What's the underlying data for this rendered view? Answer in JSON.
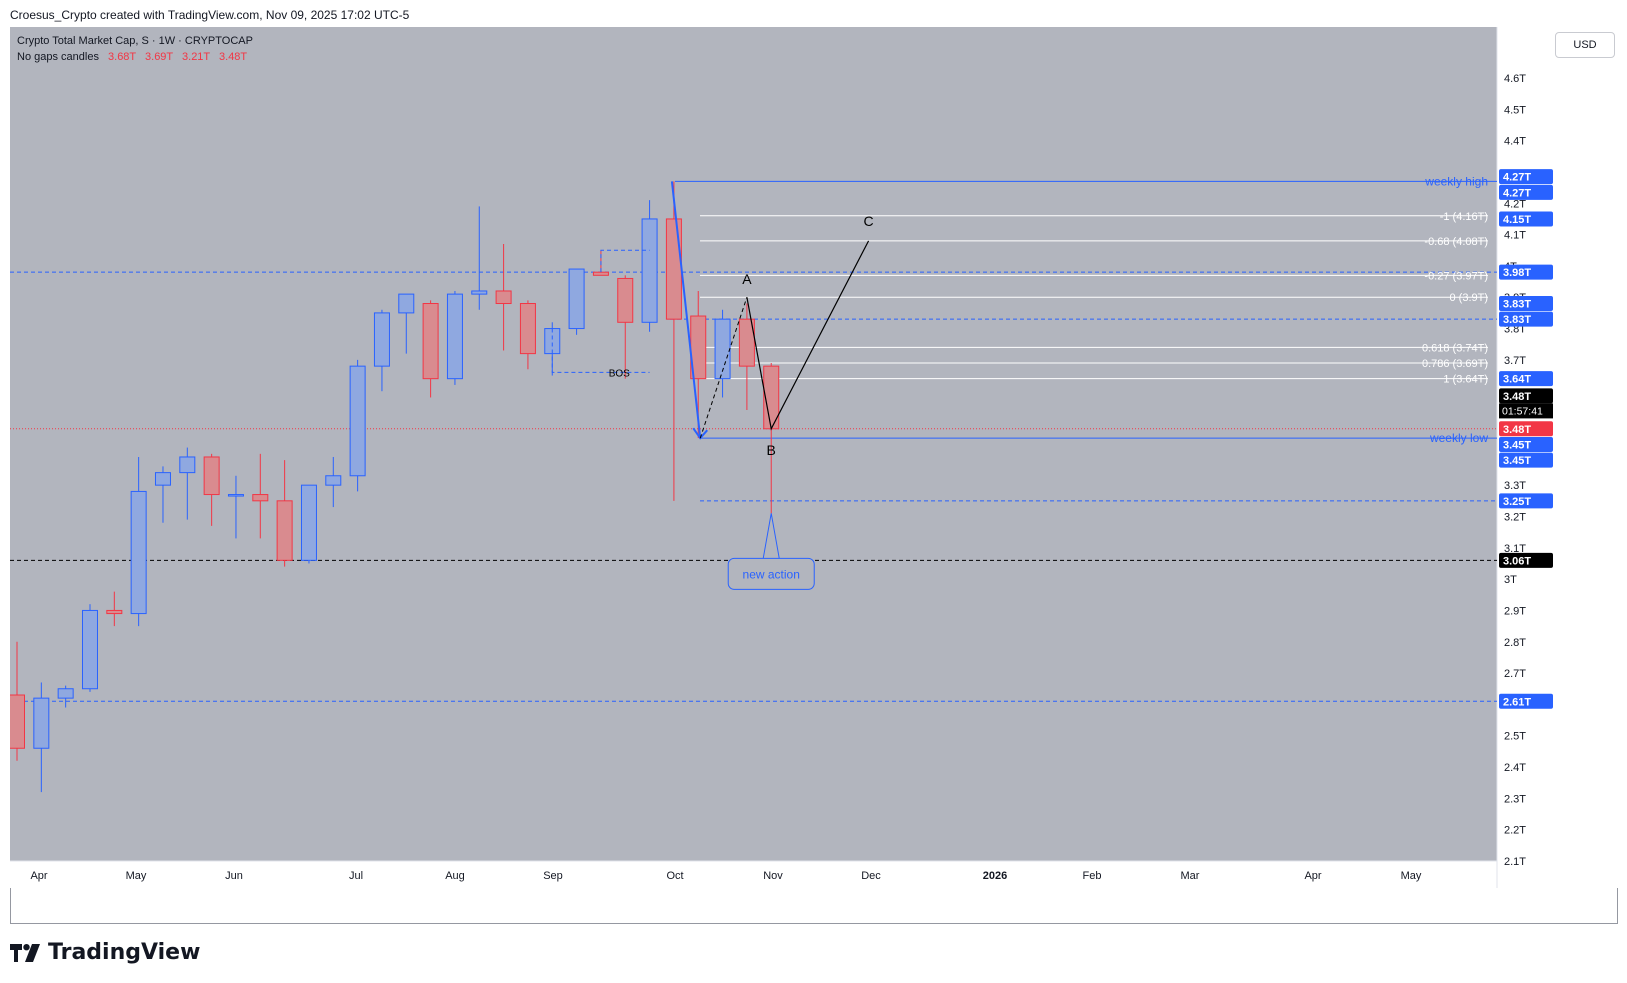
{
  "header": {
    "attribution": "Croesus_Crypto created with TradingView.com, Nov 09, 2025 17:02 UTC-5"
  },
  "legend": {
    "symbol": "Crypto Total Market Cap, S · 1W · CRYPTOCAP",
    "subtitle": "No gaps candles",
    "ohlc": [
      "3.68T",
      "3.69T",
      "3.21T",
      "3.48T"
    ]
  },
  "currency_button": "USD",
  "brand": "TradingView",
  "countdown": "01:57:41",
  "colors": {
    "background": "#b2b5be",
    "up_body": "#8fa8e0",
    "up_border": "#2962ff",
    "down_body": "#d98b8f",
    "down_border": "#f23645",
    "blue_line": "#2962ff",
    "white_line": "#ffffff",
    "price_label": "#2962ff",
    "last_price_label": "#f23645",
    "black_label": "#000000"
  },
  "chart_data": {
    "type": "candlestick",
    "x_labels": [
      "Apr",
      "May",
      "Jun",
      "Jul",
      "Aug",
      "Sep",
      "Oct",
      "Nov",
      "Dec",
      "2026",
      "Feb",
      "Mar",
      "Apr",
      "May"
    ],
    "y_ticks": [
      "4.6T",
      "4.5T",
      "4.4T",
      "4.2T",
      "4.1T",
      "4T",
      "3.9T",
      "3.8T",
      "3.7T",
      "3.3T",
      "3.2T",
      "3.1T",
      "3T",
      "2.9T",
      "2.8T",
      "2.7T",
      "2.5T",
      "2.4T",
      "2.3T",
      "2.2T",
      "2.1T"
    ],
    "ylim": [
      2.1,
      4.7
    ],
    "candles": [
      {
        "o": 2.63,
        "h": 2.8,
        "l": 2.42,
        "c": 2.46
      },
      {
        "o": 2.46,
        "h": 2.67,
        "l": 2.32,
        "c": 2.62
      },
      {
        "o": 2.62,
        "h": 2.66,
        "l": 2.59,
        "c": 2.65
      },
      {
        "o": 2.65,
        "h": 2.92,
        "l": 2.64,
        "c": 2.9
      },
      {
        "o": 2.9,
        "h": 2.96,
        "l": 2.85,
        "c": 2.89
      },
      {
        "o": 2.89,
        "h": 3.39,
        "l": 2.85,
        "c": 3.28
      },
      {
        "o": 3.3,
        "h": 3.36,
        "l": 3.18,
        "c": 3.34
      },
      {
        "o": 3.34,
        "h": 3.42,
        "l": 3.19,
        "c": 3.39
      },
      {
        "o": 3.39,
        "h": 3.4,
        "l": 3.17,
        "c": 3.27
      },
      {
        "o": 3.27,
        "h": 3.33,
        "l": 3.13,
        "c": 3.27
      },
      {
        "o": 3.27,
        "h": 3.4,
        "l": 3.13,
        "c": 3.25
      },
      {
        "o": 3.25,
        "h": 3.38,
        "l": 3.04,
        "c": 3.06
      },
      {
        "o": 3.06,
        "h": 3.3,
        "l": 3.05,
        "c": 3.3
      },
      {
        "o": 3.3,
        "h": 3.39,
        "l": 3.23,
        "c": 3.33
      },
      {
        "o": 3.33,
        "h": 3.7,
        "l": 3.28,
        "c": 3.68
      },
      {
        "o": 3.68,
        "h": 3.86,
        "l": 3.6,
        "c": 3.85
      },
      {
        "o": 3.85,
        "h": 3.89,
        "l": 3.72,
        "c": 3.91
      },
      {
        "o": 3.88,
        "h": 3.89,
        "l": 3.58,
        "c": 3.64
      },
      {
        "o": 3.64,
        "h": 3.92,
        "l": 3.62,
        "c": 3.91
      },
      {
        "o": 3.91,
        "h": 4.19,
        "l": 3.86,
        "c": 3.92
      },
      {
        "o": 3.92,
        "h": 4.07,
        "l": 3.73,
        "c": 3.88
      },
      {
        "o": 3.88,
        "h": 3.89,
        "l": 3.67,
        "c": 3.72
      },
      {
        "o": 3.72,
        "h": 3.82,
        "l": 3.65,
        "c": 3.8
      },
      {
        "o": 3.8,
        "h": 3.98,
        "l": 3.78,
        "c": 3.99
      },
      {
        "o": 3.98,
        "h": 4.05,
        "l": 3.98,
        "c": 3.97
      },
      {
        "o": 3.96,
        "h": 3.97,
        "l": 3.64,
        "c": 3.82
      },
      {
        "o": 3.82,
        "h": 4.21,
        "l": 3.79,
        "c": 4.15
      },
      {
        "o": 4.15,
        "h": 4.27,
        "l": 3.25,
        "c": 3.83
      },
      {
        "o": 3.84,
        "h": 3.92,
        "l": 3.45,
        "c": 3.64
      },
      {
        "o": 3.64,
        "h": 3.86,
        "l": 3.58,
        "c": 3.83
      },
      {
        "o": 3.83,
        "h": 3.88,
        "l": 3.54,
        "c": 3.68
      },
      {
        "o": 3.68,
        "h": 3.69,
        "l": 3.21,
        "c": 3.48
      }
    ],
    "price_labels": [
      {
        "text": "4.27T",
        "price": 4.285,
        "bg": "#2962ff"
      },
      {
        "text": "4.27T",
        "price": 4.235,
        "bg": "#2962ff"
      },
      {
        "text": "4.15T",
        "price": 4.15,
        "bg": "#2962ff"
      },
      {
        "text": "3.98T",
        "price": 3.98,
        "bg": "#2962ff"
      },
      {
        "text": "3.83T",
        "price": 3.88,
        "bg": "#2962ff"
      },
      {
        "text": "3.83T",
        "price": 3.83,
        "bg": "#2962ff"
      },
      {
        "text": "3.64T",
        "price": 3.64,
        "bg": "#2962ff"
      },
      {
        "text": "3.48T",
        "price": 3.585,
        "bg": "#000000"
      },
      {
        "text": "3.48T",
        "price": 3.48,
        "bg": "#f23645"
      },
      {
        "text": "3.45T",
        "price": 3.43,
        "bg": "#2962ff"
      },
      {
        "text": "3.45T",
        "price": 3.38,
        "bg": "#2962ff"
      },
      {
        "text": "3.25T",
        "price": 3.25,
        "bg": "#2962ff"
      },
      {
        "text": "3.06T",
        "price": 3.06,
        "bg": "#000000"
      },
      {
        "text": "2.61T",
        "price": 2.61,
        "bg": "#2962ff"
      }
    ],
    "fib_levels": [
      {
        "label": "-1 (4.16T)",
        "price": 4.16
      },
      {
        "label": "-0.68 (4.08T)",
        "price": 4.08
      },
      {
        "label": "-0.27 (3.97T)",
        "price": 3.97
      },
      {
        "label": "0 (3.9T)",
        "price": 3.9
      },
      {
        "label": "0.618 (3.74T)",
        "price": 3.74
      },
      {
        "label": "0.786 (3.69T)",
        "price": 3.69
      },
      {
        "label": "1 (3.64T)",
        "price": 3.64
      }
    ],
    "annotations": {
      "weekly_high": "weekly high",
      "weekly_low": "weekly low",
      "bos": "BOS",
      "point_a": "A",
      "point_b": "B",
      "point_c": "C",
      "callout": "new action"
    },
    "horizontal_lines": [
      {
        "price": 4.27,
        "style": "solid",
        "color": "#2962ff"
      },
      {
        "price": 3.45,
        "style": "solid",
        "color": "#2962ff"
      },
      {
        "price": 3.98,
        "style": "dashed",
        "color": "#2962ff"
      },
      {
        "price": 3.83,
        "style": "dashed",
        "color": "#2962ff"
      },
      {
        "price": 3.25,
        "style": "dashed",
        "color": "#2962ff"
      },
      {
        "price": 2.61,
        "style": "dashed",
        "color": "#2962ff"
      },
      {
        "price": 3.06,
        "style": "dashed",
        "color": "#000000"
      },
      {
        "price": 3.48,
        "style": "dotted",
        "color": "#f23645"
      }
    ]
  }
}
